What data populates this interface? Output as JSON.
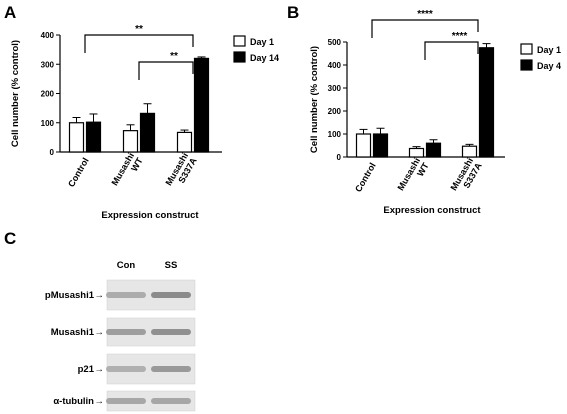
{
  "panels": {
    "a": {
      "letter": "A"
    },
    "b": {
      "letter": "B"
    },
    "c": {
      "letter": "C"
    }
  },
  "chart_data": [
    {
      "panel": "A",
      "type": "bar",
      "categories": [
        "Control",
        "Musashi\nWT",
        "Musashi\nS337A"
      ],
      "series": [
        {
          "name": "Day 1",
          "color": "#ffffff",
          "values": [
            100,
            73,
            67
          ],
          "errors": [
            18,
            20,
            8
          ]
        },
        {
          "name": "Day 14",
          "color": "#000000",
          "values": [
            102,
            132,
            320
          ],
          "errors": [
            28,
            33,
            5
          ]
        }
      ],
      "xlabel": "Expression construct",
      "ylabel": "Cell number (% control)",
      "ylim": [
        0,
        400
      ],
      "yticks": [
        0,
        100,
        200,
        300,
        400
      ],
      "legend_position": "top-right",
      "significance": [
        {
          "from": 0,
          "to": 2,
          "label": "**"
        },
        {
          "from": 1,
          "to": 2,
          "label": "**"
        }
      ]
    },
    {
      "panel": "B",
      "type": "bar",
      "categories": [
        "Control",
        "Musashi\nWT",
        "Musashi\nS337A"
      ],
      "series": [
        {
          "name": "Day 1",
          "color": "#ffffff",
          "values": [
            100,
            37,
            47
          ],
          "errors": [
            20,
            8,
            8
          ]
        },
        {
          "name": "Day 4",
          "color": "#000000",
          "values": [
            100,
            60,
            475
          ],
          "errors": [
            25,
            15,
            18
          ]
        }
      ],
      "xlabel": "Expression construct",
      "ylabel": "Cell number (% control)",
      "ylim": [
        0,
        500
      ],
      "yticks": [
        0,
        100,
        200,
        300,
        400,
        500
      ],
      "legend_position": "top-right",
      "significance": [
        {
          "from": 0,
          "to": 2,
          "label": "****"
        },
        {
          "from": 1,
          "to": 2,
          "label": "****"
        }
      ]
    }
  ],
  "blot": {
    "columns": [
      "Con",
      "SS"
    ],
    "rows": [
      {
        "label": "pMusashi1",
        "arrow": "→",
        "intensities": [
          0.45,
          0.8
        ]
      },
      {
        "label": "Musashi1",
        "arrow": "→",
        "intensities": [
          0.6,
          0.75
        ]
      },
      {
        "label": "p21",
        "arrow": "→",
        "intensities": [
          0.4,
          0.65
        ]
      },
      {
        "label": "α-tubulin",
        "arrow": "→",
        "intensities": [
          0.5,
          0.5
        ]
      }
    ]
  }
}
